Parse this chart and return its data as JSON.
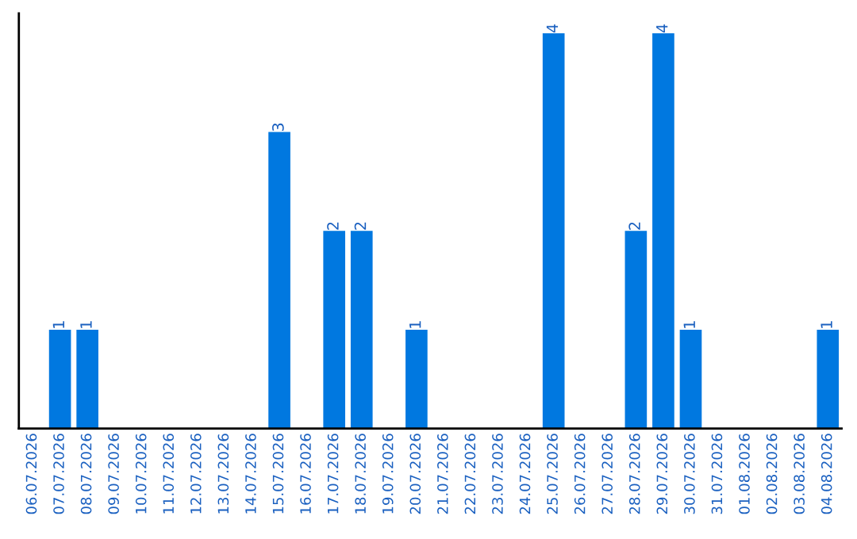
{
  "chart_data": {
    "type": "bar",
    "categories": [
      "06.07.2026",
      "07.07.2026",
      "08.07.2026",
      "09.07.2026",
      "10.07.2026",
      "11.07.2026",
      "12.07.2026",
      "13.07.2026",
      "14.07.2026",
      "15.07.2026",
      "16.07.2026",
      "17.07.2026",
      "18.07.2026",
      "19.07.2026",
      "20.07.2026",
      "21.07.2026",
      "22.07.2026",
      "23.07.2026",
      "24.07.2026",
      "25.07.2026",
      "26.07.2026",
      "27.07.2026",
      "28.07.2026",
      "29.07.2026",
      "30.07.2026",
      "31.07.2026",
      "01.08.2026",
      "02.08.2026",
      "03.08.2026",
      "04.08.2026"
    ],
    "values": [
      0,
      1,
      1,
      0,
      0,
      0,
      0,
      0,
      0,
      3,
      0,
      2,
      2,
      0,
      1,
      0,
      0,
      0,
      0,
      4,
      0,
      0,
      2,
      4,
      1,
      0,
      0,
      0,
      0,
      1
    ],
    "value_labels": [
      null,
      "1",
      "1",
      null,
      null,
      null,
      null,
      null,
      null,
      "3",
      null,
      "2",
      "2",
      null,
      "1",
      null,
      null,
      null,
      null,
      "4",
      null,
      null,
      "2",
      "4",
      "1",
      null,
      null,
      null,
      null,
      "1"
    ],
    "color": "#0078e0",
    "ylim": [
      0,
      4.2
    ],
    "tick_labels": "x",
    "grid": false,
    "legend": false
  }
}
